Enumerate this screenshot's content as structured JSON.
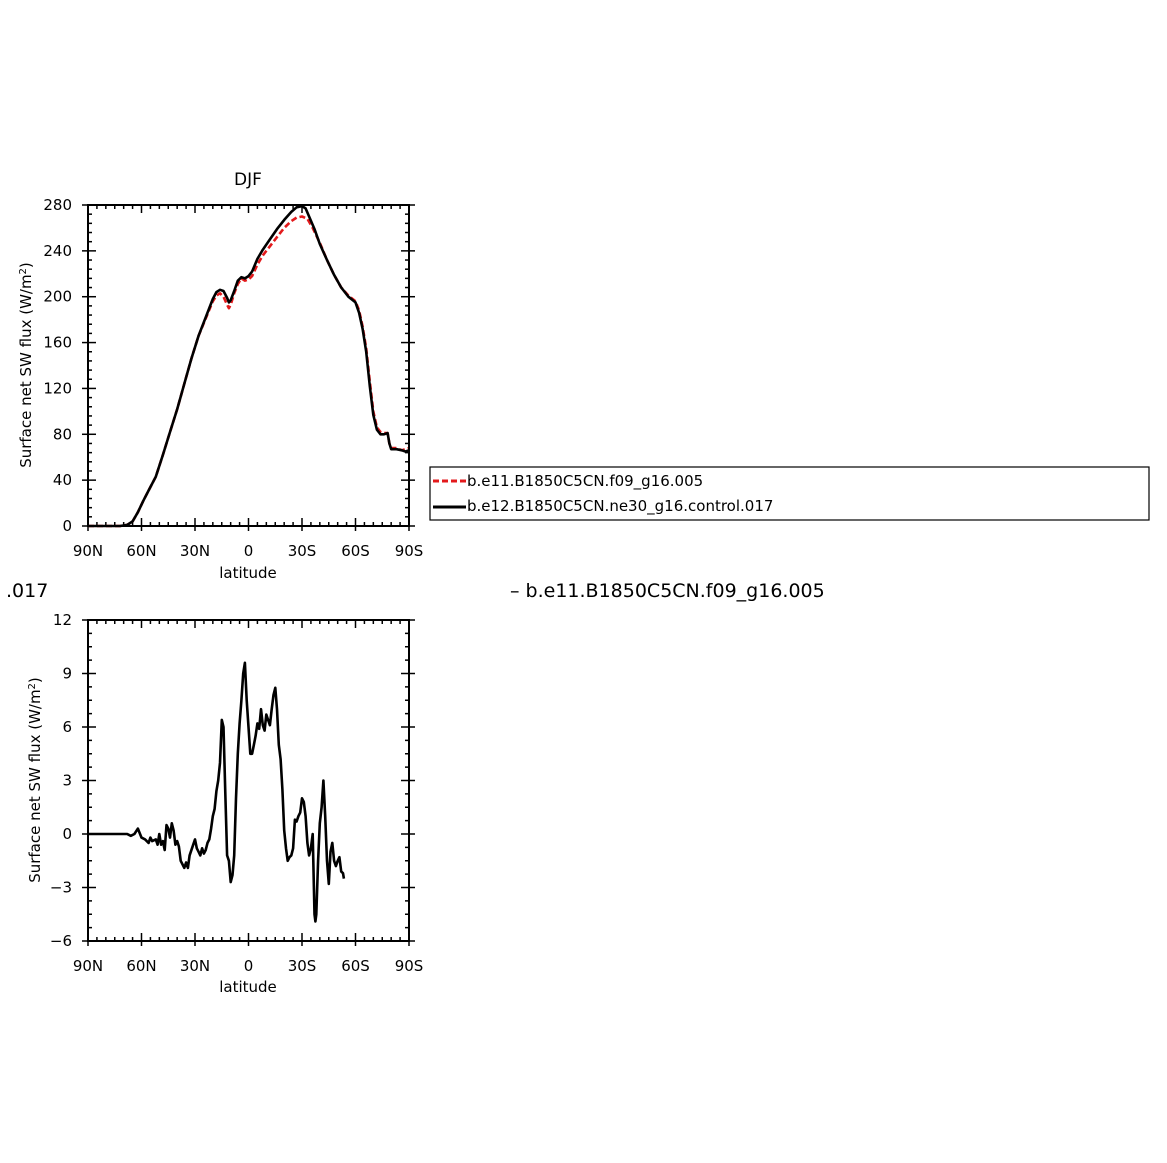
{
  "chart_data": [
    {
      "type": "line",
      "title": "DJF",
      "xlabel": "latitude",
      "ylabel": "Surface net SW flux (W/m",
      "ylabel_sup": "2",
      "ylabel_tail": ")",
      "xlim": [
        90,
        -90
      ],
      "ylim": [
        0,
        280
      ],
      "x_ticks": [
        {
          "value": 90,
          "label": "90N"
        },
        {
          "value": 60,
          "label": "60N"
        },
        {
          "value": 30,
          "label": "30N"
        },
        {
          "value": 0,
          "label": "0"
        },
        {
          "value": -30,
          "label": "30S"
        },
        {
          "value": -60,
          "label": "60S"
        },
        {
          "value": -90,
          "label": "90S"
        }
      ],
      "y_ticks": [
        0,
        40,
        80,
        120,
        160,
        200,
        240,
        280
      ],
      "legend_position": "right",
      "series": [
        {
          "name": "b.e11.B1850C5CN.f09_g16.005",
          "color": "#e31a1c",
          "dash": "dashed",
          "points": [
            [
              90,
              0
            ],
            [
              80,
              0
            ],
            [
              72,
              0
            ],
            [
              68,
              1
            ],
            [
              65,
              4
            ],
            [
              62,
              12
            ],
            [
              59,
              22
            ],
            [
              56,
              31
            ],
            [
              52,
              43
            ],
            [
              48,
              62
            ],
            [
              44,
              82
            ],
            [
              40,
              102
            ],
            [
              36,
              124
            ],
            [
              32,
              146
            ],
            [
              28,
              166
            ],
            [
              24,
              181
            ],
            [
              20,
              196
            ],
            [
              18,
              201
            ],
            [
              16,
              203
            ],
            [
              14,
              200
            ],
            [
              12,
              193
            ],
            [
              11,
              190
            ],
            [
              10,
              193
            ],
            [
              8,
              203
            ],
            [
              6,
              211
            ],
            [
              4,
              216
            ],
            [
              2,
              214
            ],
            [
              0,
              215
            ],
            [
              -2,
              218
            ],
            [
              -5,
              228
            ],
            [
              -8,
              236
            ],
            [
              -12,
              244
            ],
            [
              -16,
              252
            ],
            [
              -20,
              260
            ],
            [
              -24,
              266
            ],
            [
              -27,
              269
            ],
            [
              -30,
              270
            ],
            [
              -33,
              268
            ],
            [
              -36,
              260
            ],
            [
              -40,
              247
            ],
            [
              -44,
              232
            ],
            [
              -48,
              219
            ],
            [
              -52,
              208
            ],
            [
              -56,
              201
            ],
            [
              -60,
              196
            ],
            [
              -62,
              188
            ],
            [
              -64,
              174
            ],
            [
              -66,
              155
            ],
            [
              -68,
              126
            ],
            [
              -70,
              100
            ],
            [
              -72,
              86
            ],
            [
              -74,
              82
            ],
            [
              -76,
              81
            ],
            [
              -78,
              81
            ],
            [
              -79,
              72
            ],
            [
              -80,
              68
            ],
            [
              -83,
              68
            ],
            [
              -86,
              66
            ],
            [
              -88,
              67
            ],
            [
              -90,
              68
            ]
          ]
        },
        {
          "name": "b.e12.B1850C5CN.ne30_g16.control.017",
          "color": "#000000",
          "dash": "solid",
          "points": [
            [
              90,
              0
            ],
            [
              80,
              0
            ],
            [
              72,
              0
            ],
            [
              68,
              1
            ],
            [
              65,
              4
            ],
            [
              62,
              12
            ],
            [
              59,
              22
            ],
            [
              56,
              31
            ],
            [
              52,
              43
            ],
            [
              48,
              62
            ],
            [
              44,
              82
            ],
            [
              40,
              102
            ],
            [
              36,
              124
            ],
            [
              32,
              146
            ],
            [
              28,
              166
            ],
            [
              24,
              182
            ],
            [
              20,
              198
            ],
            [
              18,
              204
            ],
            [
              16,
              206
            ],
            [
              14,
              205
            ],
            [
              12,
              199
            ],
            [
              11,
              195
            ],
            [
              10,
              197
            ],
            [
              8,
              205
            ],
            [
              6,
              214
            ],
            [
              4,
              217
            ],
            [
              2,
              216
            ],
            [
              0,
              218
            ],
            [
              -2,
              222
            ],
            [
              -5,
              233
            ],
            [
              -8,
              241
            ],
            [
              -12,
              250
            ],
            [
              -16,
              259
            ],
            [
              -20,
              267
            ],
            [
              -24,
              274
            ],
            [
              -27,
              278
            ],
            [
              -30,
              279
            ],
            [
              -32,
              277
            ],
            [
              -34,
              270
            ],
            [
              -37,
              259
            ],
            [
              -40,
              246
            ],
            [
              -44,
              232
            ],
            [
              -48,
              219
            ],
            [
              -52,
              208
            ],
            [
              -56,
              200
            ],
            [
              -60,
              195
            ],
            [
              -62,
              186
            ],
            [
              -64,
              172
            ],
            [
              -66,
              152
            ],
            [
              -68,
              122
            ],
            [
              -70,
              97
            ],
            [
              -72,
              84
            ],
            [
              -74,
              80
            ],
            [
              -76,
              80
            ],
            [
              -78,
              81
            ],
            [
              -79,
              72
            ],
            [
              -80,
              67
            ],
            [
              -83,
              67
            ],
            [
              -86,
              66
            ],
            [
              -88,
              65
            ],
            [
              -90,
              66
            ]
          ]
        }
      ]
    },
    {
      "type": "line",
      "title_left_fragment": ".017",
      "title_right_fragment": "– b.e11.B1850C5CN.f09_g16.005",
      "xlabel": "latitude",
      "ylabel": "Surface net SW flux (W/m",
      "ylabel_sup": "2",
      "ylabel_tail": ")",
      "xlim": [
        90,
        -90
      ],
      "ylim": [
        -6,
        12
      ],
      "x_ticks": [
        {
          "value": 90,
          "label": "90N"
        },
        {
          "value": 60,
          "label": "60N"
        },
        {
          "value": 30,
          "label": "30N"
        },
        {
          "value": 0,
          "label": "0"
        },
        {
          "value": -30,
          "label": "30S"
        },
        {
          "value": -60,
          "label": "60S"
        },
        {
          "value": -90,
          "label": "90S"
        }
      ],
      "y_ticks": [
        {
          "value": -6,
          "label": "−6"
        },
        {
          "value": -3,
          "label": "−3"
        },
        {
          "value": 0,
          "label": "0"
        },
        {
          "value": 3,
          "label": "3"
        },
        {
          "value": 6,
          "label": "6"
        },
        {
          "value": 9,
          "label": "9"
        },
        {
          "value": 12,
          "label": "12"
        }
      ],
      "series": [
        {
          "color": "#000000",
          "dash": "solid",
          "points": [
            [
              90,
              0
            ],
            [
              80,
              0
            ],
            [
              73,
              0
            ],
            [
              68,
              0
            ],
            [
              66,
              -0.1
            ],
            [
              64,
              0
            ],
            [
              62,
              0.3
            ],
            [
              60,
              -0.2
            ],
            [
              58,
              -0.3
            ],
            [
              56,
              -0.5
            ],
            [
              55,
              -0.2
            ],
            [
              54,
              -0.4
            ],
            [
              52,
              -0.3
            ],
            [
              51,
              -0.6
            ],
            [
              50,
              0
            ],
            [
              49,
              -0.6
            ],
            [
              48,
              -0.4
            ],
            [
              47,
              -0.9
            ],
            [
              46,
              0.5
            ],
            [
              45,
              0.3
            ],
            [
              44,
              -0.2
            ],
            [
              43,
              0.6
            ],
            [
              42,
              0.2
            ],
            [
              41,
              -0.6
            ],
            [
              40,
              -0.4
            ],
            [
              39,
              -0.7
            ],
            [
              38,
              -1.5
            ],
            [
              36,
              -1.9
            ],
            [
              35,
              -1.6
            ],
            [
              34,
              -1.9
            ],
            [
              33,
              -1.2
            ],
            [
              31,
              -0.6
            ],
            [
              30,
              -0.3
            ],
            [
              29,
              -0.8
            ],
            [
              28,
              -1.0
            ],
            [
              27,
              -1.2
            ],
            [
              26,
              -0.8
            ],
            [
              25,
              -1.1
            ],
            [
              24,
              -0.9
            ],
            [
              23,
              -0.5
            ],
            [
              22,
              -0.3
            ],
            [
              21,
              0.3
            ],
            [
              20,
              1.0
            ],
            [
              19,
              1.4
            ],
            [
              18,
              2.4
            ],
            [
              17,
              3.0
            ],
            [
              16,
              4.0
            ],
            [
              15,
              6.4
            ],
            [
              14,
              6.0
            ],
            [
              13,
              2.3
            ],
            [
              12,
              -1.2
            ],
            [
              11,
              -1.5
            ],
            [
              10,
              -2.7
            ],
            [
              9,
              -2.3
            ],
            [
              8,
              -1.2
            ],
            [
              7,
              2.0
            ],
            [
              6,
              4.5
            ],
            [
              5,
              6.2
            ],
            [
              4,
              7.5
            ],
            [
              3,
              9.0
            ],
            [
              2,
              9.6
            ],
            [
              1,
              7.5
            ],
            [
              0,
              6.0
            ],
            [
              -1,
              4.5
            ],
            [
              -2,
              4.5
            ],
            [
              -3,
              5.0
            ],
            [
              -4,
              5.5
            ],
            [
              -5,
              6.2
            ],
            [
              -6,
              5.9
            ],
            [
              -7,
              7.0
            ],
            [
              -8,
              6.1
            ],
            [
              -9,
              5.8
            ],
            [
              -10,
              6.7
            ],
            [
              -11,
              6.4
            ],
            [
              -12,
              6.1
            ],
            [
              -13,
              7.0
            ],
            [
              -14,
              7.8
            ],
            [
              -15,
              8.2
            ],
            [
              -16,
              7.0
            ],
            [
              -17,
              5.0
            ],
            [
              -18,
              4.2
            ],
            [
              -19,
              2.5
            ],
            [
              -20,
              0.2
            ],
            [
              -21,
              -0.8
            ],
            [
              -22,
              -1.5
            ],
            [
              -23,
              -1.3
            ],
            [
              -24,
              -1.2
            ],
            [
              -25,
              -0.8
            ],
            [
              -26,
              0.8
            ],
            [
              -27,
              0.7
            ],
            [
              -28,
              1.0
            ],
            [
              -29,
              1.2
            ],
            [
              -30,
              2.0
            ],
            [
              -31,
              1.8
            ],
            [
              -32,
              1.0
            ],
            [
              -33,
              -0.5
            ],
            [
              -34,
              -1.2
            ],
            [
              -35,
              -0.8
            ],
            [
              -36,
              0.0
            ],
            [
              -37,
              -4.5
            ],
            [
              -37.5,
              -4.9
            ],
            [
              -38,
              -4.5
            ],
            [
              -39,
              -1.5
            ],
            [
              -40,
              0.6
            ],
            [
              -41,
              1.5
            ],
            [
              -42,
              3.0
            ],
            [
              -43,
              1.0
            ],
            [
              -44,
              -1.5
            ],
            [
              -45,
              -2.8
            ],
            [
              -46,
              -1.0
            ],
            [
              -47,
              -0.5
            ],
            [
              -48,
              -1.5
            ],
            [
              -49,
              -1.8
            ],
            [
              -50,
              -1.5
            ],
            [
              -51,
              -1.3
            ],
            [
              -52,
              -2.1
            ],
            [
              -53,
              -2.2
            ],
            [
              -53.5,
              -2.5
            ]
          ]
        }
      ]
    }
  ]
}
